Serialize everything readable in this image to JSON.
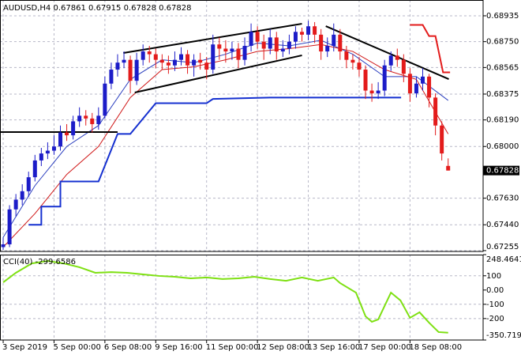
{
  "chart_data": [
    {
      "type": "candlestick",
      "title": "AUDUSD,H4",
      "xlim": [
        -0.5,
        75.5
      ],
      "xticks": [
        {
          "value": 0,
          "label": "3 Sep 2019"
        },
        {
          "value": 8,
          "label": "5 Sep 00:00"
        },
        {
          "value": 16,
          "label": "6 Sep 08:00"
        },
        {
          "value": 24,
          "label": "9 Sep 16:00"
        },
        {
          "value": 32,
          "label": "11 Sep 00:00"
        },
        {
          "value": 40,
          "label": "12 Sep 08:00"
        },
        {
          "value": 48,
          "label": "13 Sep 16:00"
        },
        {
          "value": 56,
          "label": "17 Sep 00:00"
        },
        {
          "value": 64,
          "label": "18 Sep 08:00"
        }
      ],
      "ylim": [
        0.67249,
        0.69048
      ],
      "yticks": [
        0.68935,
        {
          "value": 0.6875,
          "label": "0.68750"
        },
        0.68565,
        0.68375,
        {
          "value": 0.6819,
          "label": "0.68190"
        },
        {
          "value": 0.68,
          "label": "0.68000"
        },
        {
          "value": 0.6763,
          "label": "0.67630"
        },
        {
          "value": 0.6744,
          "label": "0.67440"
        },
        0.67255
      ],
      "grid": true,
      "up_color": "#1c1cc8",
      "down_color": "#e31b1b",
      "open": [
        0.6728,
        0.673,
        0.6755,
        0.6762,
        0.6768,
        0.6778,
        0.679,
        0.6795,
        0.6797,
        0.68,
        0.681,
        0.6808,
        0.6818,
        0.6822,
        0.682,
        0.6816,
        0.6822,
        0.6845,
        0.6855,
        0.686,
        0.6862,
        0.6847,
        0.6862,
        0.6868,
        0.6866,
        0.6862,
        0.686,
        0.6858,
        0.6862,
        0.6866,
        0.6858,
        0.6862,
        0.686,
        0.6855,
        0.6873,
        0.687,
        0.6868,
        0.687,
        0.6862,
        0.6872,
        0.6882,
        0.6875,
        0.687,
        0.6878,
        0.6868,
        0.687,
        0.6875,
        0.6882,
        0.688,
        0.6886,
        0.688,
        0.6868,
        0.6872,
        0.688,
        0.6868,
        0.6862,
        0.686,
        0.6855,
        0.684,
        0.6838,
        0.684,
        0.6858,
        0.6865,
        0.6862,
        0.6852,
        0.6838,
        0.6845,
        0.685,
        0.6835,
        0.6815,
        0.67861
      ],
      "high": [
        0.6735,
        0.6758,
        0.6766,
        0.6773,
        0.6782,
        0.6794,
        0.6799,
        0.6803,
        0.6808,
        0.6815,
        0.6816,
        0.6822,
        0.6828,
        0.6826,
        0.6824,
        0.6828,
        0.685,
        0.686,
        0.6866,
        0.6868,
        0.6865,
        0.6867,
        0.6873,
        0.6872,
        0.687,
        0.6866,
        0.6865,
        0.6868,
        0.6871,
        0.6869,
        0.6866,
        0.6867,
        0.6864,
        0.688,
        0.6878,
        0.6876,
        0.6875,
        0.6874,
        0.6878,
        0.6888,
        0.6886,
        0.688,
        0.6884,
        0.6882,
        0.6876,
        0.688,
        0.6886,
        0.6885,
        0.689,
        0.6889,
        0.6884,
        0.6878,
        0.6888,
        0.6884,
        0.6872,
        0.6866,
        0.6864,
        0.6858,
        0.6845,
        0.6846,
        0.6862,
        0.6868,
        0.687,
        0.6866,
        0.6856,
        0.685,
        0.6856,
        0.6852,
        0.6838,
        0.6818,
        0.67915
      ],
      "low": [
        0.6726,
        0.6728,
        0.675,
        0.6758,
        0.6764,
        0.6775,
        0.6786,
        0.6791,
        0.6794,
        0.6797,
        0.6804,
        0.6805,
        0.6814,
        0.6815,
        0.681,
        0.6812,
        0.682,
        0.6841,
        0.685,
        0.6856,
        0.6838,
        0.6844,
        0.6858,
        0.686,
        0.6856,
        0.6855,
        0.6852,
        0.6854,
        0.6858,
        0.6852,
        0.685,
        0.6855,
        0.6848,
        0.6852,
        0.6862,
        0.686,
        0.6862,
        0.6856,
        0.6858,
        0.6868,
        0.687,
        0.6862,
        0.6866,
        0.6862,
        0.6864,
        0.6866,
        0.687,
        0.6875,
        0.6876,
        0.6874,
        0.6862,
        0.6864,
        0.6868,
        0.6862,
        0.6856,
        0.6855,
        0.685,
        0.6834,
        0.6832,
        0.6834,
        0.6836,
        0.6854,
        0.6857,
        0.6846,
        0.6832,
        0.6835,
        0.684,
        0.6828,
        0.6808,
        0.679,
        0.67828
      ],
      "close": [
        0.673,
        0.6755,
        0.6762,
        0.6768,
        0.6778,
        0.679,
        0.6795,
        0.6797,
        0.68,
        0.681,
        0.6808,
        0.6818,
        0.6822,
        0.682,
        0.6816,
        0.6822,
        0.6845,
        0.6855,
        0.686,
        0.6862,
        0.6847,
        0.6862,
        0.6868,
        0.6866,
        0.6862,
        0.686,
        0.6858,
        0.6862,
        0.6866,
        0.6858,
        0.6862,
        0.686,
        0.6855,
        0.6873,
        0.687,
        0.6868,
        0.687,
        0.6862,
        0.6872,
        0.6882,
        0.6875,
        0.687,
        0.6878,
        0.6868,
        0.687,
        0.6875,
        0.6882,
        0.688,
        0.6886,
        0.688,
        0.6868,
        0.6872,
        0.688,
        0.6868,
        0.6862,
        0.686,
        0.6855,
        0.684,
        0.6838,
        0.684,
        0.6858,
        0.6865,
        0.6862,
        0.6852,
        0.6838,
        0.6845,
        0.685,
        0.6835,
        0.6815,
        0.6795,
        0.67828
      ],
      "overlays": [
        {
          "color": "#2b3fbf",
          "width": 1,
          "x": [
            0,
            5,
            10,
            15,
            20,
            25,
            30,
            35,
            40,
            45,
            50,
            55,
            60,
            65,
            70
          ],
          "values": [
            0.6735,
            0.6772,
            0.68,
            0.6815,
            0.6848,
            0.6862,
            0.686,
            0.6866,
            0.6874,
            0.6872,
            0.6876,
            0.6866,
            0.685,
            0.685,
            0.6833
          ]
        },
        {
          "color": "#d01818",
          "width": 1,
          "x": [
            0,
            5,
            10,
            15,
            20,
            25,
            30,
            35,
            40,
            45,
            50,
            55,
            60,
            65,
            70
          ],
          "values": [
            0.6728,
            0.6752,
            0.678,
            0.68,
            0.6835,
            0.6855,
            0.6857,
            0.6862,
            0.6868,
            0.687,
            0.6873,
            0.6868,
            0.6855,
            0.6848,
            0.6809
          ]
        },
        {
          "color": "#1530d0",
          "width": 2,
          "x": [
            4,
            6,
            6,
            9,
            9,
            15,
            18,
            20,
            24,
            32,
            33,
            42,
            62.6
          ],
          "values": [
            0.6744,
            0.6744,
            0.6757,
            0.6757,
            0.6775,
            0.6775,
            0.6809,
            0.6809,
            0.6831,
            0.6831,
            0.6834,
            0.6835,
            0.6835
          ]
        },
        {
          "color": "#e31b1b",
          "width": 2,
          "x": [
            64,
            66,
            67,
            68,
            69.2,
            70.3
          ],
          "values": [
            0.6887,
            0.6887,
            0.6879,
            0.6879,
            0.6853,
            0.6853
          ]
        },
        {
          "color": "#000000",
          "width": 2,
          "x": [
            18.9,
            47
          ],
          "values": [
            0.68669,
            0.68878
          ]
        },
        {
          "color": "#000000",
          "width": 2,
          "x": [
            20.7,
            47
          ],
          "values": [
            0.68386,
            0.68652
          ]
        },
        {
          "color": "#000000",
          "width": 2,
          "x": [
            50.75,
            70.1
          ],
          "values": [
            0.68861,
            0.68482
          ]
        },
        {
          "color": "#000000",
          "width": 2,
          "x": [
            -0.5,
            18
          ],
          "values": [
            0.68103,
            0.68103
          ]
        }
      ]
    },
    {
      "type": "line",
      "title": "CCI(40)",
      "color": "#7ee012",
      "xlim": [
        -0.5,
        75.5
      ],
      "ylim": [
        -350.7196,
        248.4641
      ],
      "yticks": [
        248.4641,
        100,
        {
          "value": 0,
          "label": "0.00"
        },
        -100,
        -200,
        -350.7196
      ],
      "x": [
        0,
        2,
        4.5,
        7,
        9.5,
        12,
        14.5,
        17,
        19.5,
        22,
        24.5,
        27,
        29.5,
        32,
        34.5,
        37,
        39.5,
        42,
        44.5,
        47,
        49.5,
        52,
        53,
        55.5,
        57,
        58,
        59,
        61,
        62.5,
        64,
        65.5,
        67,
        68.5,
        70
      ],
      "values": [
        54,
        121,
        187,
        204,
        187,
        160,
        121,
        126,
        121,
        110,
        99,
        93,
        82,
        88,
        77,
        82,
        93,
        77,
        65,
        88,
        65,
        88,
        49,
        -18,
        -184,
        -223,
        -206,
        -18,
        -73,
        -195,
        -156,
        -229,
        -295,
        -299.6586
      ]
    }
  ]
}
